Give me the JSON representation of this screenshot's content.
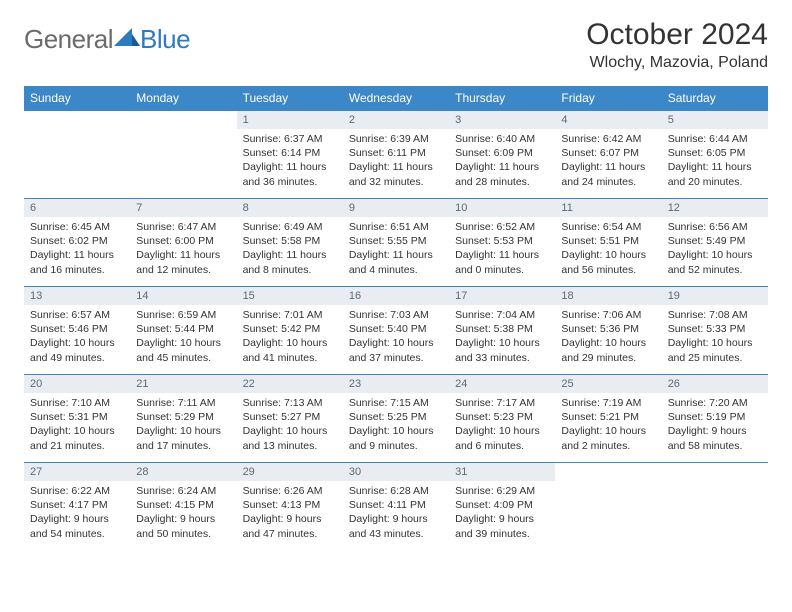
{
  "brand": {
    "part1": "General",
    "part2": "Blue"
  },
  "title": "October 2024",
  "location": "Wlochy, Mazovia, Poland",
  "colors": {
    "header_bg": "#3c87c7",
    "header_text": "#ffffff",
    "daynum_bg": "#e9edf1",
    "daynum_text": "#5a6a78",
    "border": "#3c87c7",
    "logo_gray": "#6b6b6b",
    "logo_blue": "#2f7bbf"
  },
  "weekdays": [
    "Sunday",
    "Monday",
    "Tuesday",
    "Wednesday",
    "Thursday",
    "Friday",
    "Saturday"
  ],
  "weeks": [
    [
      {
        "n": "",
        "sr": "",
        "ss": "",
        "dl": "",
        "empty": true
      },
      {
        "n": "",
        "sr": "",
        "ss": "",
        "dl": "",
        "empty": true
      },
      {
        "n": "1",
        "sr": "Sunrise: 6:37 AM",
        "ss": "Sunset: 6:14 PM",
        "dl": "Daylight: 11 hours and 36 minutes."
      },
      {
        "n": "2",
        "sr": "Sunrise: 6:39 AM",
        "ss": "Sunset: 6:11 PM",
        "dl": "Daylight: 11 hours and 32 minutes."
      },
      {
        "n": "3",
        "sr": "Sunrise: 6:40 AM",
        "ss": "Sunset: 6:09 PM",
        "dl": "Daylight: 11 hours and 28 minutes."
      },
      {
        "n": "4",
        "sr": "Sunrise: 6:42 AM",
        "ss": "Sunset: 6:07 PM",
        "dl": "Daylight: 11 hours and 24 minutes."
      },
      {
        "n": "5",
        "sr": "Sunrise: 6:44 AM",
        "ss": "Sunset: 6:05 PM",
        "dl": "Daylight: 11 hours and 20 minutes."
      }
    ],
    [
      {
        "n": "6",
        "sr": "Sunrise: 6:45 AM",
        "ss": "Sunset: 6:02 PM",
        "dl": "Daylight: 11 hours and 16 minutes."
      },
      {
        "n": "7",
        "sr": "Sunrise: 6:47 AM",
        "ss": "Sunset: 6:00 PM",
        "dl": "Daylight: 11 hours and 12 minutes."
      },
      {
        "n": "8",
        "sr": "Sunrise: 6:49 AM",
        "ss": "Sunset: 5:58 PM",
        "dl": "Daylight: 11 hours and 8 minutes."
      },
      {
        "n": "9",
        "sr": "Sunrise: 6:51 AM",
        "ss": "Sunset: 5:55 PM",
        "dl": "Daylight: 11 hours and 4 minutes."
      },
      {
        "n": "10",
        "sr": "Sunrise: 6:52 AM",
        "ss": "Sunset: 5:53 PM",
        "dl": "Daylight: 11 hours and 0 minutes."
      },
      {
        "n": "11",
        "sr": "Sunrise: 6:54 AM",
        "ss": "Sunset: 5:51 PM",
        "dl": "Daylight: 10 hours and 56 minutes."
      },
      {
        "n": "12",
        "sr": "Sunrise: 6:56 AM",
        "ss": "Sunset: 5:49 PM",
        "dl": "Daylight: 10 hours and 52 minutes."
      }
    ],
    [
      {
        "n": "13",
        "sr": "Sunrise: 6:57 AM",
        "ss": "Sunset: 5:46 PM",
        "dl": "Daylight: 10 hours and 49 minutes."
      },
      {
        "n": "14",
        "sr": "Sunrise: 6:59 AM",
        "ss": "Sunset: 5:44 PM",
        "dl": "Daylight: 10 hours and 45 minutes."
      },
      {
        "n": "15",
        "sr": "Sunrise: 7:01 AM",
        "ss": "Sunset: 5:42 PM",
        "dl": "Daylight: 10 hours and 41 minutes."
      },
      {
        "n": "16",
        "sr": "Sunrise: 7:03 AM",
        "ss": "Sunset: 5:40 PM",
        "dl": "Daylight: 10 hours and 37 minutes."
      },
      {
        "n": "17",
        "sr": "Sunrise: 7:04 AM",
        "ss": "Sunset: 5:38 PM",
        "dl": "Daylight: 10 hours and 33 minutes."
      },
      {
        "n": "18",
        "sr": "Sunrise: 7:06 AM",
        "ss": "Sunset: 5:36 PM",
        "dl": "Daylight: 10 hours and 29 minutes."
      },
      {
        "n": "19",
        "sr": "Sunrise: 7:08 AM",
        "ss": "Sunset: 5:33 PM",
        "dl": "Daylight: 10 hours and 25 minutes."
      }
    ],
    [
      {
        "n": "20",
        "sr": "Sunrise: 7:10 AM",
        "ss": "Sunset: 5:31 PM",
        "dl": "Daylight: 10 hours and 21 minutes."
      },
      {
        "n": "21",
        "sr": "Sunrise: 7:11 AM",
        "ss": "Sunset: 5:29 PM",
        "dl": "Daylight: 10 hours and 17 minutes."
      },
      {
        "n": "22",
        "sr": "Sunrise: 7:13 AM",
        "ss": "Sunset: 5:27 PM",
        "dl": "Daylight: 10 hours and 13 minutes."
      },
      {
        "n": "23",
        "sr": "Sunrise: 7:15 AM",
        "ss": "Sunset: 5:25 PM",
        "dl": "Daylight: 10 hours and 9 minutes."
      },
      {
        "n": "24",
        "sr": "Sunrise: 7:17 AM",
        "ss": "Sunset: 5:23 PM",
        "dl": "Daylight: 10 hours and 6 minutes."
      },
      {
        "n": "25",
        "sr": "Sunrise: 7:19 AM",
        "ss": "Sunset: 5:21 PM",
        "dl": "Daylight: 10 hours and 2 minutes."
      },
      {
        "n": "26",
        "sr": "Sunrise: 7:20 AM",
        "ss": "Sunset: 5:19 PM",
        "dl": "Daylight: 9 hours and 58 minutes."
      }
    ],
    [
      {
        "n": "27",
        "sr": "Sunrise: 6:22 AM",
        "ss": "Sunset: 4:17 PM",
        "dl": "Daylight: 9 hours and 54 minutes."
      },
      {
        "n": "28",
        "sr": "Sunrise: 6:24 AM",
        "ss": "Sunset: 4:15 PM",
        "dl": "Daylight: 9 hours and 50 minutes."
      },
      {
        "n": "29",
        "sr": "Sunrise: 6:26 AM",
        "ss": "Sunset: 4:13 PM",
        "dl": "Daylight: 9 hours and 47 minutes."
      },
      {
        "n": "30",
        "sr": "Sunrise: 6:28 AM",
        "ss": "Sunset: 4:11 PM",
        "dl": "Daylight: 9 hours and 43 minutes."
      },
      {
        "n": "31",
        "sr": "Sunrise: 6:29 AM",
        "ss": "Sunset: 4:09 PM",
        "dl": "Daylight: 9 hours and 39 minutes."
      },
      {
        "n": "",
        "sr": "",
        "ss": "",
        "dl": "",
        "empty": true
      },
      {
        "n": "",
        "sr": "",
        "ss": "",
        "dl": "",
        "empty": true
      }
    ]
  ]
}
